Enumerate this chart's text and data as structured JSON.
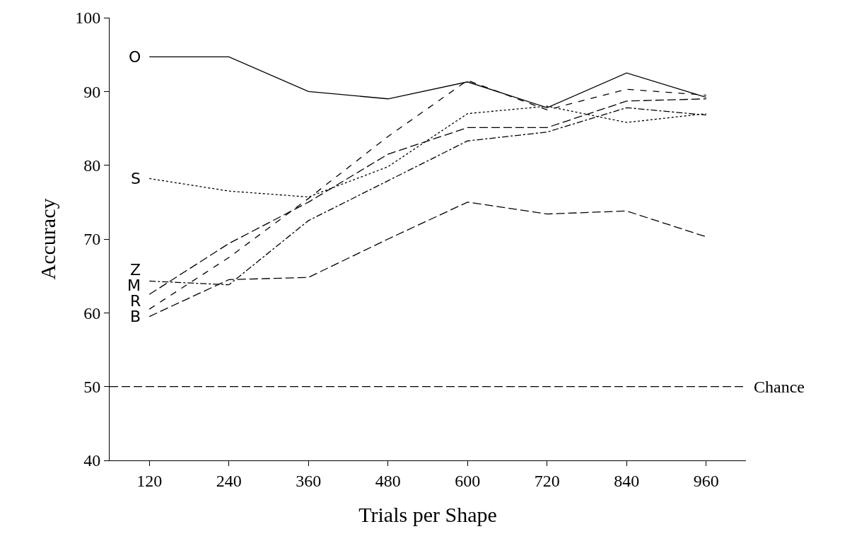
{
  "chart_data": {
    "type": "line",
    "xlabel": "Trials per Shape",
    "ylabel": "Accuracy",
    "x": [
      120,
      240,
      360,
      480,
      600,
      720,
      840,
      960
    ],
    "xlim": [
      60,
      1020
    ],
    "xticks": [
      120,
      240,
      360,
      480,
      600,
      720,
      840,
      960
    ],
    "ylim": [
      40,
      100
    ],
    "yticks": [
      40,
      50,
      60,
      70,
      80,
      90,
      100
    ],
    "grid": false,
    "legend": false,
    "marker": "none",
    "series": [
      {
        "name": "O",
        "color": "#000000",
        "line_style": "solid",
        "values": [
          94.7,
          94.7,
          90.0,
          89.0,
          91.3,
          87.8,
          92.5,
          89.2
        ]
      },
      {
        "name": "S",
        "color": "#000000",
        "line_style": "dotted",
        "values": [
          78.2,
          76.5,
          75.7,
          79.8,
          87.0,
          88.0,
          85.8,
          87.0
        ]
      },
      {
        "name": "M",
        "color": "#000000",
        "line_style": "longdash",
        "values": [
          62.5,
          69.4,
          75.0,
          81.5,
          85.1,
          85.1,
          88.7,
          89.0
        ]
      },
      {
        "name": "R",
        "color": "#000000",
        "line_style": "dashed",
        "values": [
          60.5,
          67.5,
          75.5,
          83.9,
          91.5,
          87.5,
          90.3,
          89.5
        ]
      },
      {
        "name": "Z",
        "color": "#000000",
        "line_style": "dashdot",
        "values": [
          64.3,
          63.8,
          72.5,
          77.9,
          83.3,
          84.5,
          87.8,
          86.8
        ]
      },
      {
        "name": "B",
        "color": "#000000",
        "line_style": "longdash",
        "values": [
          59.5,
          64.5,
          64.8,
          70.0,
          75.0,
          73.4,
          73.8,
          70.3
        ]
      }
    ],
    "ref_lines": [
      {
        "axis": "y",
        "value": 50,
        "label": "Chance",
        "color": "#000000",
        "line_style": "longdash"
      }
    ]
  }
}
